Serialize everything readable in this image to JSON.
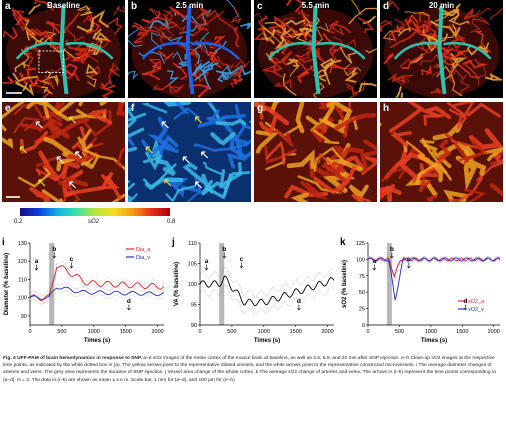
{
  "panels_top": [
    {
      "label": "a",
      "title": "Baseline"
    },
    {
      "label": "b",
      "title": "2.5 min"
    },
    {
      "label": "c",
      "title": "5.5 min"
    },
    {
      "label": "d",
      "title": "20 min"
    }
  ],
  "panels_mid": [
    {
      "label": "e"
    },
    {
      "label": "f"
    },
    {
      "label": "g"
    },
    {
      "label": "h"
    }
  ],
  "colorbar": {
    "min": "0.2",
    "max": "0.8",
    "label": "sO2"
  },
  "chart_data": [
    {
      "panel": "i",
      "type": "line",
      "ylabel": "Diameter (% baseline)",
      "xlabel": "Times (s)",
      "xlim": [
        0,
        2100
      ],
      "ylim": [
        85,
        130
      ],
      "xticks": [
        0,
        500,
        1000,
        1500,
        2000
      ],
      "yticks": [
        90,
        100,
        110,
        120,
        130
      ],
      "series": [
        {
          "name": "Dia_a",
          "color": "#e0202a"
        },
        {
          "name": "Dia_v",
          "color": "#2030c8"
        }
      ],
      "annotations": [
        {
          "text": "a",
          "x": 100
        },
        {
          "text": "b",
          "x": 380
        },
        {
          "text": "c",
          "x": 650
        },
        {
          "text": "d",
          "x": 1550
        }
      ]
    },
    {
      "panel": "j",
      "type": "line",
      "ylabel": "VA (% baseline)",
      "xlabel": "Times (s)",
      "xlim": [
        0,
        2100
      ],
      "ylim": [
        90,
        110
      ],
      "xticks": [
        0,
        500,
        1000,
        1500,
        2000
      ],
      "yticks": [
        90,
        95,
        100,
        105,
        110
      ],
      "series": [
        {
          "name": "",
          "color": "#000000"
        }
      ],
      "annotations": [
        {
          "text": "a",
          "x": 100
        },
        {
          "text": "b",
          "x": 380
        },
        {
          "text": "c",
          "x": 650
        },
        {
          "text": "d",
          "x": 1550
        }
      ]
    },
    {
      "panel": "k",
      "type": "line",
      "ylabel": "sO2 (% baseline)",
      "xlabel": "Times (s)",
      "xlim": [
        0,
        2100
      ],
      "ylim": [
        0,
        125
      ],
      "xticks": [
        0,
        500,
        1000,
        1500,
        2000
      ],
      "yticks": [
        0,
        25,
        50,
        75,
        100,
        125
      ],
      "series": [
        {
          "name": "sO2_a",
          "color": "#e0202a"
        },
        {
          "name": "sO2_v",
          "color": "#2030c8"
        }
      ],
      "annotations": [
        {
          "text": "a",
          "x": 100
        },
        {
          "text": "b",
          "x": 380
        },
        {
          "text": "c",
          "x": 650
        },
        {
          "text": "d",
          "x": 1550
        }
      ]
    }
  ],
  "caption": {
    "lead": "Fig. 4 UFF-PAM of brain hemodynamics in response to SNP.",
    "body": " a–d sO2 images of the entire cortex of the mouse brain at baseline, as well as 2.5, 5.5, and 20 min after SNP injection. e–h Close-up sO2 images at the respective time points, as indicated by the white dotted box in (a). The yellow arrows point to the representative dilated vessels, and the white arrows point to the representative constricted microvessels. i The average diameter changes of arteries and veins. The grey area represents the duration of SNP injection. j Vessel area change of the whole cortex. k The average sO2 change of arteries and veins. The arrows in (i–k) represent the time points corresponding to (a–d). N = 3. The data in (i–k) are shown as mean ± s.e.m. Scale bar, 1 mm for (a–d), and 100 μm for (e–h)"
  }
}
